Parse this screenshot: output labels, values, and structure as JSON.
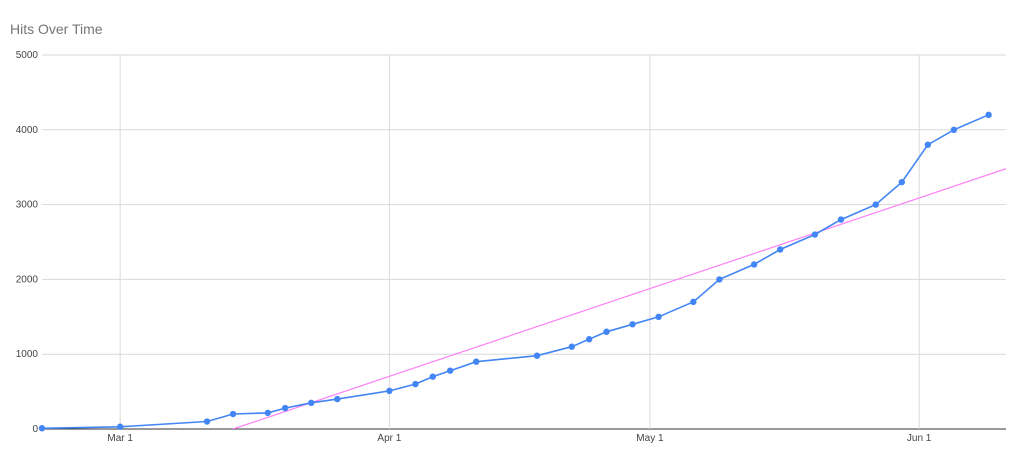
{
  "chart_data": {
    "type": "line",
    "title": "Hits Over Time",
    "xlabel": "",
    "ylabel": "",
    "ylim": [
      0,
      5000
    ],
    "xlim": [
      "2024-02-21",
      "2024-06-11"
    ],
    "x_ticks": [
      {
        "date": "2024-03-01",
        "label": "Mar 1"
      },
      {
        "date": "2024-04-01",
        "label": "Apr 1"
      },
      {
        "date": "2024-05-01",
        "label": "May 1"
      },
      {
        "date": "2024-06-01",
        "label": "Jun 1"
      }
    ],
    "y_ticks": [
      0,
      1000,
      2000,
      3000,
      4000,
      5000
    ],
    "grid": true,
    "legend": "none",
    "series": [
      {
        "color": "#4285f4",
        "points": [
          {
            "x": "2024-02-21",
            "y": 10
          },
          {
            "x": "2024-03-01",
            "y": 30
          },
          {
            "x": "2024-03-11",
            "y": 100
          },
          {
            "x": "2024-03-14",
            "y": 200
          },
          {
            "x": "2024-03-18",
            "y": 215
          },
          {
            "x": "2024-03-20",
            "y": 280
          },
          {
            "x": "2024-03-23",
            "y": 350
          },
          {
            "x": "2024-03-26",
            "y": 400
          },
          {
            "x": "2024-04-01",
            "y": 510
          },
          {
            "x": "2024-04-04",
            "y": 600
          },
          {
            "x": "2024-04-06",
            "y": 700
          },
          {
            "x": "2024-04-08",
            "y": 780
          },
          {
            "x": "2024-04-11",
            "y": 900
          },
          {
            "x": "2024-04-18",
            "y": 980
          },
          {
            "x": "2024-04-22",
            "y": 1100
          },
          {
            "x": "2024-04-24",
            "y": 1200
          },
          {
            "x": "2024-04-26",
            "y": 1300
          },
          {
            "x": "2024-04-29",
            "y": 1400
          },
          {
            "x": "2024-05-02",
            "y": 1500
          },
          {
            "x": "2024-05-06",
            "y": 1700
          },
          {
            "x": "2024-05-09",
            "y": 2000
          },
          {
            "x": "2024-05-13",
            "y": 2200
          },
          {
            "x": "2024-05-16",
            "y": 2400
          },
          {
            "x": "2024-05-20",
            "y": 2600
          },
          {
            "x": "2024-05-23",
            "y": 2800
          },
          {
            "x": "2024-05-27",
            "y": 3000
          },
          {
            "x": "2024-05-30",
            "y": 3300
          },
          {
            "x": "2024-06-02",
            "y": 3800
          },
          {
            "x": "2024-06-05",
            "y": 4000
          },
          {
            "x": "2024-06-09",
            "y": 4200
          }
        ]
      }
    ],
    "trendline": {
      "type": "linear",
      "color": "#ff7ff5",
      "points": [
        {
          "x": "2024-03-14",
          "y": 0
        },
        {
          "x": "2024-06-11",
          "y": 3480
        }
      ]
    }
  }
}
